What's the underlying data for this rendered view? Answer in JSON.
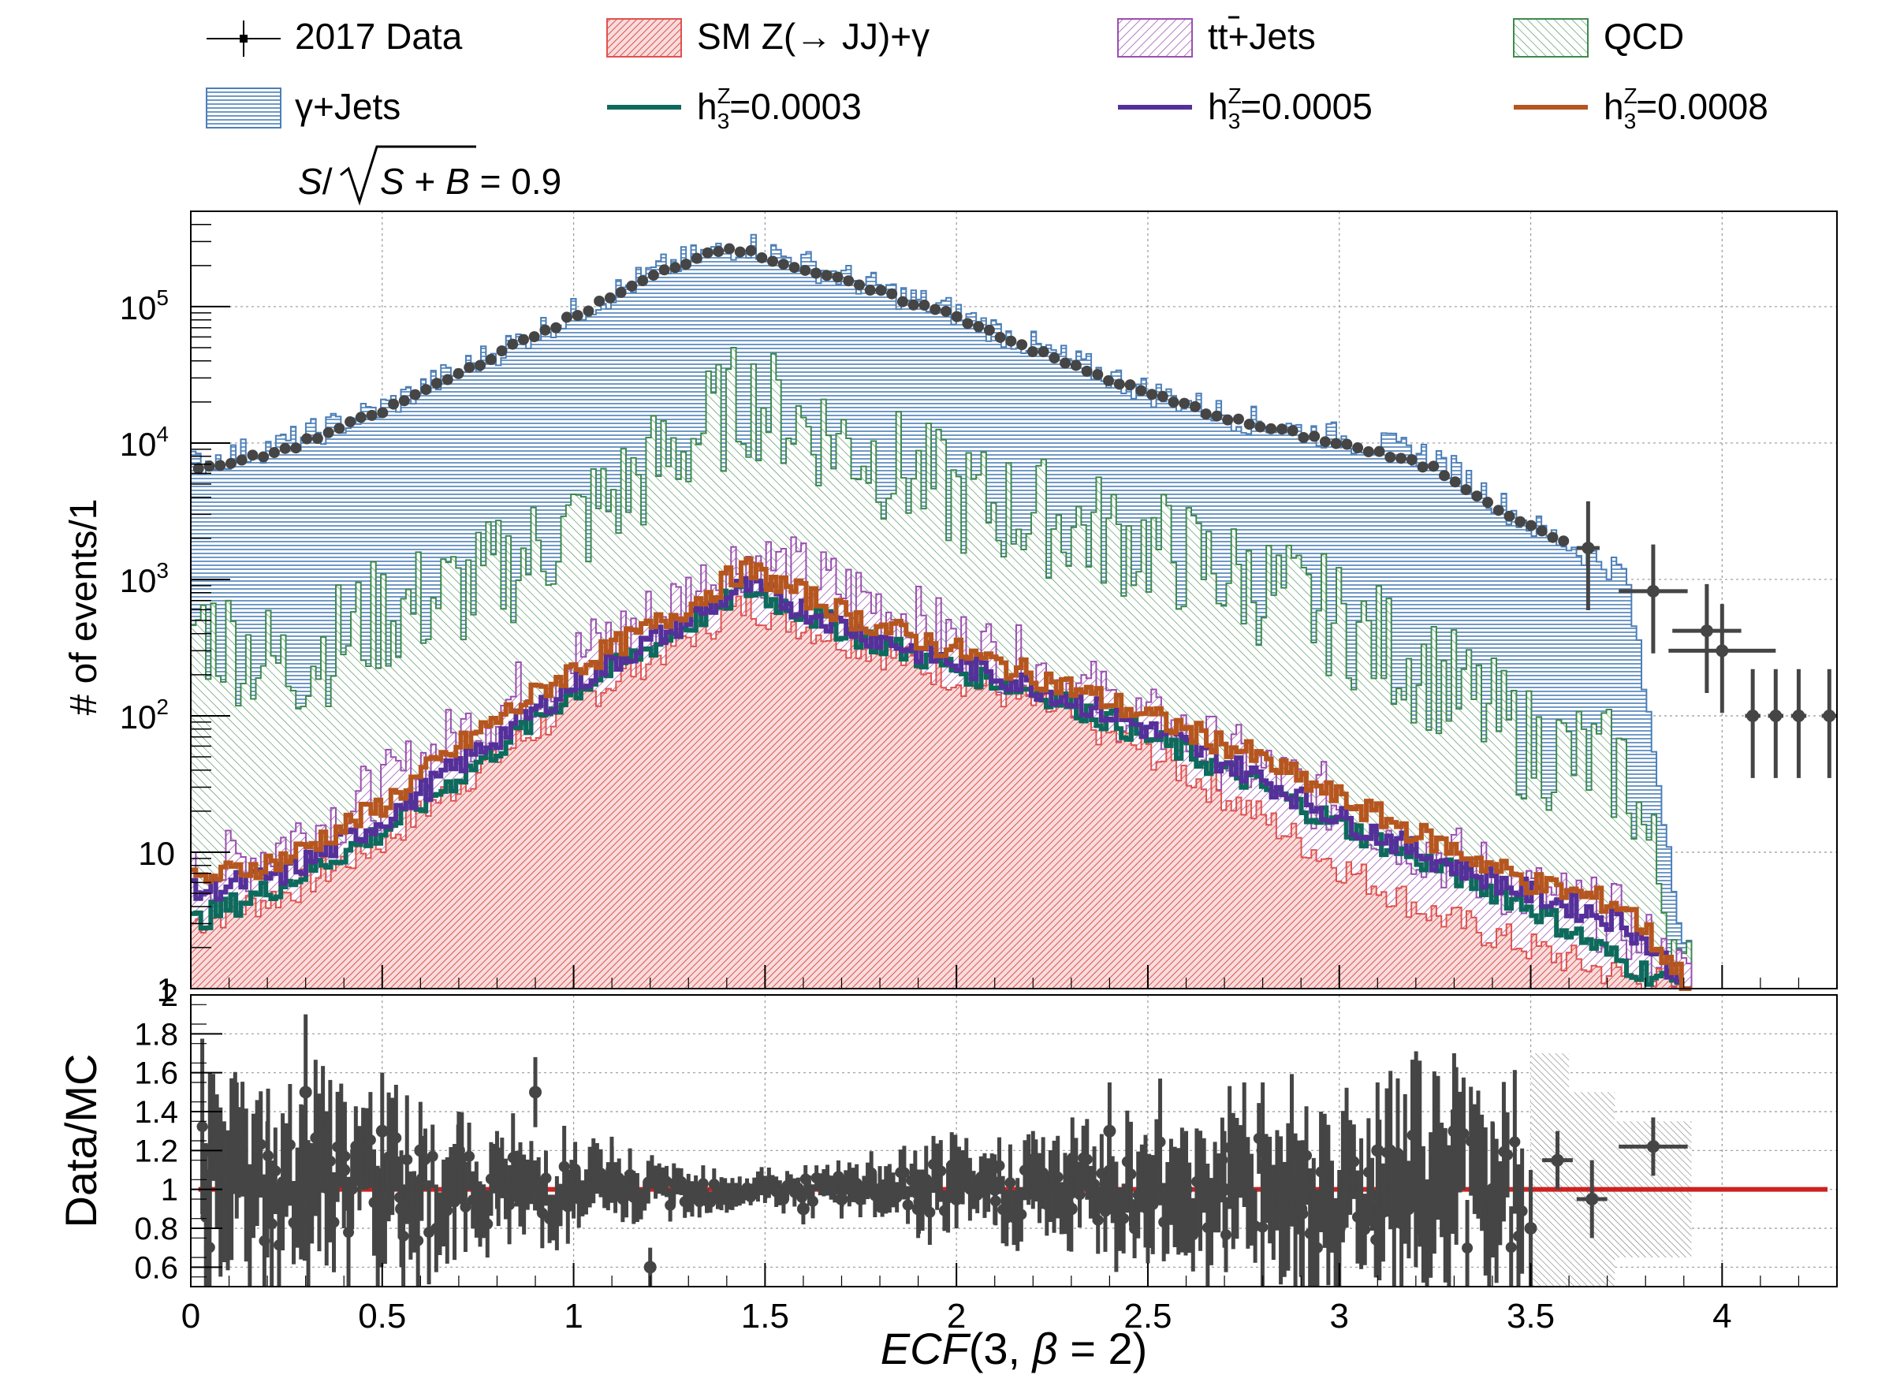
{
  "legend": {
    "data": "2017 Data",
    "sm_pre": "SM Z(",
    "sm_arrow": "→",
    "sm_post": " JJ)+γ",
    "tt_t1": "t",
    "tt_t2": "t",
    "tt_rest": "+Jets",
    "qcd": "QCD",
    "gjets": "γ+Jets",
    "h_base": "h",
    "h_sup": "Z",
    "h_sub": "3",
    "h1_val": "=0.0003",
    "h2_val": "=0.0005",
    "h3_val": "=0.0008"
  },
  "significance": {
    "S": "S",
    "slash": "/",
    "S2": "S",
    "plus": " + ",
    "B": "B",
    "rest": " = 0.9"
  },
  "colors": {
    "data": "#454545",
    "sm": "#e0524f",
    "ttbar": "#9a4fb0",
    "qcd": "#3d8a4e",
    "gjets": "#4b7fb8",
    "h1": "#0e6a5c",
    "h2": "#55309a",
    "h3": "#b6561f",
    "ratio_line": "#cc2222"
  },
  "chart_data": [
    {
      "type": "bar",
      "stacked": true,
      "log_y": true,
      "ylabel": "# of events/1",
      "ylim": [
        1,
        500000
      ],
      "xlim": [
        0,
        4.3
      ],
      "grid": true,
      "y_tick_labels": [
        "1",
        "10",
        "10",
        "10",
        "10",
        "10"
      ],
      "y_tick_exponents": [
        "",
        "",
        "2",
        "3",
        "4",
        "5"
      ],
      "series": [
        {
          "name": "SM Z(→ JJ)+γ",
          "x": [
            0.0,
            0.25,
            0.5,
            0.75,
            1.0,
            1.25,
            1.45,
            1.75,
            2.0,
            2.25,
            2.5,
            2.75,
            3.0,
            3.25,
            3.5,
            3.75,
            3.92
          ],
          "values": [
            3,
            5,
            12,
            40,
            120,
            320,
            650,
            330,
            190,
            110,
            55,
            22,
            8,
            3.5,
            2,
            1.2,
            1
          ]
        },
        {
          "name": "tt+Jets",
          "x": [
            0.0,
            0.25,
            0.5,
            0.75,
            1.0,
            1.25,
            1.45,
            1.75,
            2.0,
            2.25,
            2.5,
            2.75,
            3.0,
            3.25,
            3.5,
            3.75,
            3.92
          ],
          "values": [
            6,
            12,
            28,
            90,
            260,
            620,
            1500,
            760,
            360,
            200,
            90,
            45,
            22,
            10,
            5,
            3,
            1
          ]
        },
        {
          "name": "QCD",
          "x": [
            0.0,
            0.25,
            0.5,
            0.75,
            1.0,
            1.25,
            1.45,
            1.75,
            2.0,
            2.25,
            2.5,
            2.75,
            3.0,
            3.25,
            3.5,
            3.75,
            3.92
          ],
          "values": [
            500,
            220,
            550,
            900,
            2400,
            8000,
            22000,
            9000,
            4000,
            2800,
            1800,
            1000,
            500,
            200,
            60,
            40,
            1
          ]
        },
        {
          "name": "γ+Jets",
          "x": [
            0.0,
            0.25,
            0.5,
            0.75,
            1.0,
            1.25,
            1.45,
            1.75,
            2.0,
            2.25,
            2.5,
            2.75,
            3.0,
            3.25,
            3.5,
            3.75,
            3.92
          ],
          "values": [
            7000,
            10000,
            18000,
            40000,
            90000,
            200000,
            290000,
            150000,
            90000,
            45000,
            24000,
            15000,
            11000,
            8000,
            2500,
            1100,
            1
          ]
        },
        {
          "name": "2017 Data",
          "x": [
            0.05,
            0.25,
            0.5,
            0.75,
            1.0,
            1.25,
            1.4,
            1.75,
            2.0,
            2.25,
            2.5,
            2.75,
            3.0,
            3.25,
            3.5,
            3.65,
            3.82,
            3.96,
            4.0,
            4.1,
            4.2,
            4.3
          ],
          "values": [
            6500,
            9000,
            17000,
            38000,
            85000,
            190000,
            280000,
            140000,
            85000,
            42000,
            23000,
            14000,
            10000,
            6500,
            2400,
            1700,
            820,
            420,
            300,
            100,
            100,
            100
          ]
        },
        {
          "name": "h3Z=0.0003",
          "x": [
            0.0,
            0.25,
            0.5,
            0.75,
            1.0,
            1.25,
            1.45,
            1.75,
            2.0,
            2.25,
            2.5,
            2.75,
            3.0,
            3.25,
            3.5,
            3.75,
            3.92
          ],
          "values": [
            3,
            6,
            14,
            45,
            150,
            380,
            850,
            380,
            220,
            140,
            70,
            35,
            16,
            8,
            4,
            1.5,
            1
          ]
        },
        {
          "name": "h3Z=0.0005",
          "x": [
            0.0,
            0.25,
            0.5,
            0.75,
            1.0,
            1.25,
            1.45,
            1.75,
            2.0,
            2.25,
            2.5,
            2.75,
            3.0,
            3.25,
            3.5,
            3.75,
            3.92
          ],
          "values": [
            5,
            7,
            17,
            55,
            170,
            420,
            900,
            410,
            240,
            150,
            80,
            40,
            18,
            9,
            5,
            3,
            1
          ]
        },
        {
          "name": "h3Z=0.0008",
          "x": [
            0.0,
            0.25,
            0.5,
            0.75,
            1.0,
            1.25,
            1.45,
            1.75,
            2.0,
            2.25,
            2.5,
            2.75,
            3.0,
            3.25,
            3.5,
            3.75,
            3.92
          ],
          "values": [
            6,
            9,
            22,
            75,
            220,
            520,
            1200,
            500,
            300,
            180,
            100,
            55,
            25,
            12,
            6,
            4,
            1
          ]
        }
      ]
    },
    {
      "type": "scatter",
      "ylabel": "Data/MC",
      "ylim": [
        0.5,
        2.0
      ],
      "xlim": [
        0,
        4.3
      ],
      "grid": true,
      "reference_line": 1.0,
      "xlabel_main": "ECF",
      "xlabel_open": "(3, ",
      "xlabel_beta": "β",
      "xlabel_close": " = 2)",
      "x_tick_labels": [
        "0",
        "0.5",
        "1",
        "1.5",
        "2",
        "2.5",
        "3",
        "3.5",
        "4"
      ],
      "y_tick_labels": [
        "0.6",
        "0.8",
        "1",
        "1.2",
        "1.4",
        "1.6",
        "1.8",
        "2"
      ],
      "points": {
        "x": [
          0.05,
          0.12,
          0.2,
          0.3,
          0.4,
          0.5,
          0.55,
          0.6,
          0.7,
          0.8,
          0.9,
          1.0,
          1.1,
          1.2,
          1.3,
          1.4,
          1.5,
          1.6,
          1.7,
          1.8,
          1.9,
          2.0,
          2.1,
          2.2,
          2.3,
          2.4,
          2.5,
          2.6,
          2.7,
          2.8,
          2.9,
          3.0,
          3.1,
          3.2,
          3.3,
          3.4,
          3.5,
          3.57,
          3.66,
          3.82
        ],
        "y": [
          1.2,
          1.2,
          1.0,
          1.5,
          1.1,
          1.3,
          0.9,
          1.2,
          1.2,
          1.1,
          1.5,
          1.0,
          1.1,
          0.6,
          1.0,
          0.95,
          1.0,
          0.9,
          0.95,
          1.0,
          0.9,
          0.95,
          1.0,
          1.1,
          0.9,
          1.3,
          0.9,
          1.0,
          1.0,
          1.2,
          0.9,
          0.8,
          1.2,
          1.0,
          1.3,
          1.0,
          0.8,
          1.15,
          0.95,
          1.22
        ],
        "err": [
          0.4,
          0.35,
          0.35,
          0.4,
          0.3,
          0.3,
          0.3,
          0.25,
          0.2,
          0.2,
          0.18,
          0.15,
          0.12,
          0.1,
          0.08,
          0.07,
          0.07,
          0.08,
          0.1,
          0.12,
          0.15,
          0.15,
          0.18,
          0.2,
          0.22,
          0.25,
          0.28,
          0.3,
          0.3,
          0.35,
          0.35,
          0.3,
          0.35,
          0.4,
          0.4,
          0.35,
          0.3,
          0.15,
          0.2,
          0.15
        ]
      }
    }
  ]
}
